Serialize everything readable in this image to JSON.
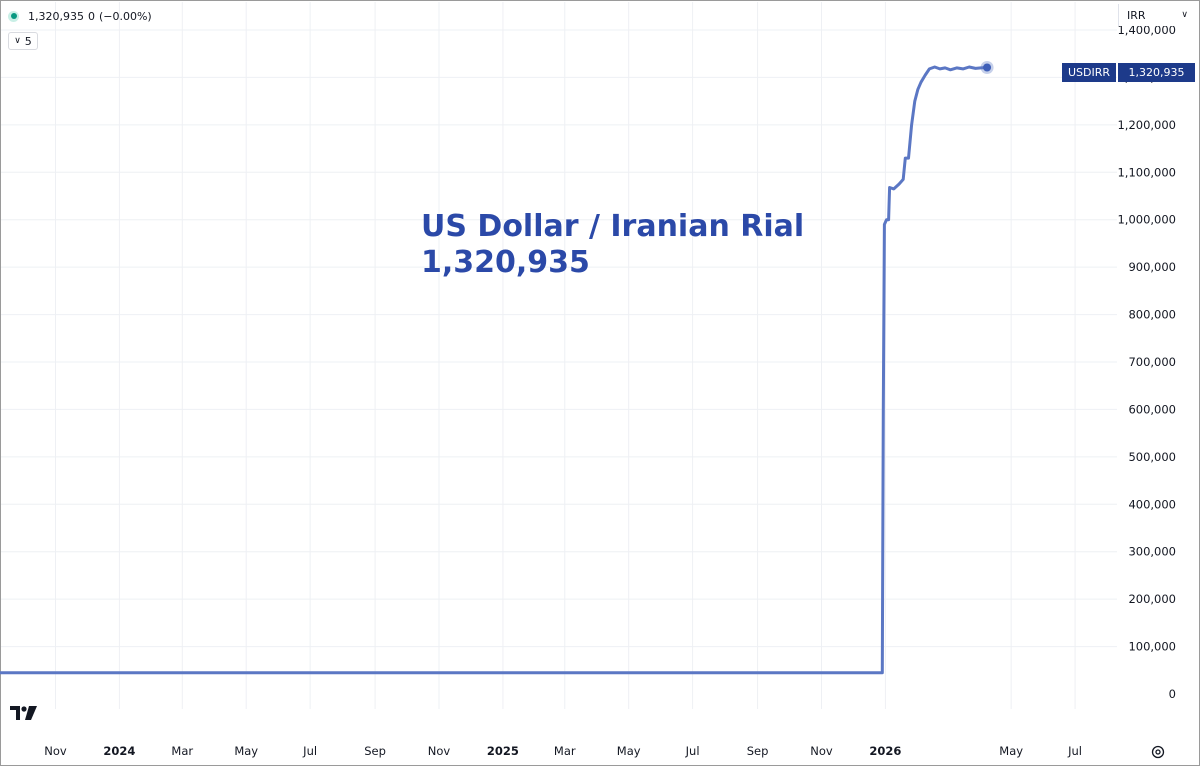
{
  "header": {
    "price": "1,320,935",
    "change": "0",
    "change_pct": "(−0.00%)",
    "status_color": "#089981"
  },
  "interval": {
    "label": "5",
    "icon": "chevron-down-icon"
  },
  "currency_selector": {
    "label": "IRR",
    "icon": "chevron-down-icon"
  },
  "price_badge": {
    "symbol": "USDIRR",
    "value": "1,320,935",
    "color": "#1d3a8a"
  },
  "watermark": {
    "name": "US Dollar / Iranian Rial",
    "price": "1,320,935"
  },
  "logo": {
    "icon": "tradingview-logo-icon"
  },
  "settings": {
    "icon": "settings-icon"
  },
  "chart_data": {
    "type": "line",
    "series": [
      {
        "color": "#5b77c4",
        "points": [
          [
            "2023-09-01",
            45000
          ],
          [
            "2023-11-01",
            45000
          ],
          [
            "2024-01-01",
            45000
          ],
          [
            "2024-03-01",
            45000
          ],
          [
            "2024-05-01",
            45000
          ],
          [
            "2024-07-01",
            45000
          ],
          [
            "2024-09-01",
            45000
          ],
          [
            "2024-11-01",
            45000
          ],
          [
            "2025-01-01",
            45000
          ],
          [
            "2025-03-01",
            45000
          ],
          [
            "2025-05-01",
            45000
          ],
          [
            "2025-07-01",
            45000
          ],
          [
            "2025-09-01",
            45000
          ],
          [
            "2025-11-01",
            45000
          ],
          [
            "2025-12-28",
            45000
          ],
          [
            "2025-12-29",
            45000
          ],
          [
            "2025-12-30",
            600000
          ],
          [
            "2025-12-31",
            990000
          ],
          [
            "2026-01-02",
            1000000
          ],
          [
            "2026-01-04",
            1000000
          ],
          [
            "2026-01-05",
            1068000
          ],
          [
            "2026-01-09",
            1065000
          ],
          [
            "2026-01-14",
            1075000
          ],
          [
            "2026-01-18",
            1085000
          ],
          [
            "2026-01-20",
            1130000
          ],
          [
            "2026-01-23",
            1130000
          ],
          [
            "2026-01-26",
            1200000
          ],
          [
            "2026-01-29",
            1250000
          ],
          [
            "2026-02-01",
            1275000
          ],
          [
            "2026-02-04",
            1290000
          ],
          [
            "2026-02-08",
            1305000
          ],
          [
            "2026-02-12",
            1318000
          ],
          [
            "2026-02-17",
            1322000
          ],
          [
            "2026-02-22",
            1318000
          ],
          [
            "2026-02-27",
            1320000
          ],
          [
            "2026-03-04",
            1316000
          ],
          [
            "2026-03-10",
            1320000
          ],
          [
            "2026-03-16",
            1318000
          ],
          [
            "2026-03-22",
            1322000
          ],
          [
            "2026-03-28",
            1319000
          ],
          [
            "2026-04-02",
            1320000
          ],
          [
            "2026-04-08",
            1320935
          ]
        ]
      }
    ],
    "y_ticks": [
      "0",
      "100,000",
      "200,000",
      "300,000",
      "400,000",
      "500,000",
      "600,000",
      "700,000",
      "800,000",
      "900,000",
      "1,000,000",
      "1,100,000",
      "1,200,000",
      "1,300,000",
      "1,400,000"
    ],
    "y_tick_values": [
      0,
      100000,
      200000,
      300000,
      400000,
      500000,
      600000,
      700000,
      800000,
      900000,
      1000000,
      1100000,
      1200000,
      1300000,
      1400000
    ],
    "x_ticks": [
      {
        "label": "Nov",
        "date": "2023-11-01",
        "bold": false
      },
      {
        "label": "2024",
        "date": "2024-01-01",
        "bold": true
      },
      {
        "label": "Mar",
        "date": "2024-03-01",
        "bold": false
      },
      {
        "label": "May",
        "date": "2024-05-01",
        "bold": false
      },
      {
        "label": "Jul",
        "date": "2024-07-01",
        "bold": false
      },
      {
        "label": "Sep",
        "date": "2024-09-01",
        "bold": false
      },
      {
        "label": "Nov",
        "date": "2024-11-01",
        "bold": false
      },
      {
        "label": "2025",
        "date": "2025-01-01",
        "bold": true
      },
      {
        "label": "Mar",
        "date": "2025-03-01",
        "bold": false
      },
      {
        "label": "May",
        "date": "2025-05-01",
        "bold": false
      },
      {
        "label": "Jul",
        "date": "2025-07-01",
        "bold": false
      },
      {
        "label": "Sep",
        "date": "2025-09-01",
        "bold": false
      },
      {
        "label": "Nov",
        "date": "2025-11-01",
        "bold": false
      },
      {
        "label": "2026",
        "date": "2026-01-01",
        "bold": true
      },
      {
        "label": "May",
        "date": "2026-05-01",
        "bold": false
      },
      {
        "label": "Jul",
        "date": "2026-07-01",
        "bold": false
      }
    ],
    "ylim": [
      0,
      1400000
    ],
    "xlim": [
      "2023-09-10",
      "2026-08-10"
    ],
    "grid": true,
    "last_value": 1320935
  }
}
